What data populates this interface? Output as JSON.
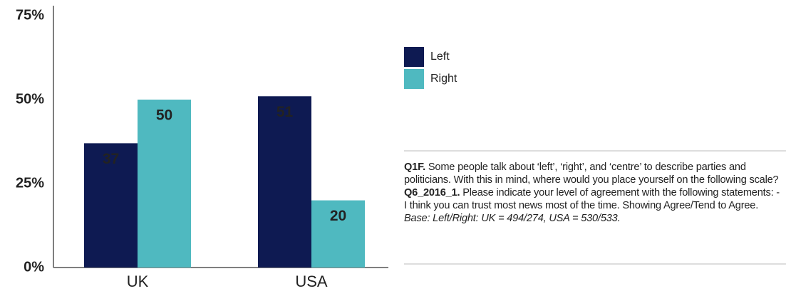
{
  "chart_data": {
    "type": "bar",
    "categories": [
      "UK",
      "USA"
    ],
    "series": [
      {
        "name": "Left",
        "color": "#0e1a52",
        "values": [
          37,
          51
        ]
      },
      {
        "name": "Right",
        "color": "#4fb9c0",
        "values": [
          50,
          20
        ]
      }
    ],
    "ylim": [
      0,
      75
    ],
    "yticks": [
      {
        "value": 0,
        "label": "0%"
      },
      {
        "value": 25,
        "label": "25%"
      },
      {
        "value": 50,
        "label": "50%"
      },
      {
        "value": 75,
        "label": "75%"
      }
    ],
    "grid": false,
    "legend": "right",
    "note": [
      {
        "text": "Q1F.",
        "style": "bold"
      },
      {
        "text": " Some people talk about ‘left’, ‘right’, and ‘centre’ to describe parties and politicians. With this in mind, where would you place yourself on the following scale? ",
        "style": "normal"
      },
      {
        "text": "Q6_2016_1.",
        "style": "bold"
      },
      {
        "text": " Please indicate your level of agreement with the following statements: - I think you can trust most news most of the time. Showing Agree/Tend to Agree. ",
        "style": "normal"
      },
      {
        "text": "Base: Left/Right: UK = 494/274, USA = 530/533.",
        "style": "italic"
      }
    ]
  }
}
